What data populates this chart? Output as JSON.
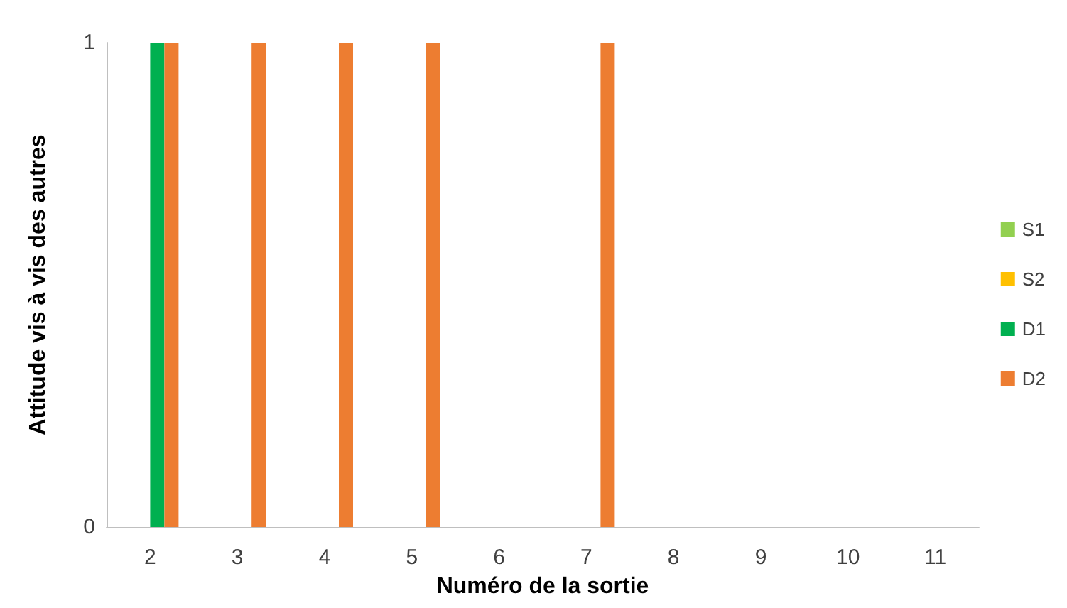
{
  "chart_data": {
    "type": "bar",
    "xlabel": "Numéro de la sortie",
    "ylabel": "Attitude vis à vis des autres",
    "categories": [
      "2",
      "3",
      "4",
      "5",
      "6",
      "7",
      "8",
      "9",
      "10",
      "11"
    ],
    "series": [
      {
        "name": "S1",
        "color": "#92d050",
        "values": [
          0,
          0,
          0,
          0,
          0,
          0,
          0,
          0,
          0,
          0
        ]
      },
      {
        "name": "S2",
        "color": "#ffc000",
        "values": [
          0,
          0,
          0,
          0,
          0,
          0,
          0,
          0,
          0,
          0
        ]
      },
      {
        "name": "D1",
        "color": "#00b050",
        "values": [
          1,
          0,
          0,
          0,
          0,
          0,
          0,
          0,
          0,
          0
        ]
      },
      {
        "name": "D2",
        "color": "#ed7d31",
        "values": [
          1,
          1,
          1,
          1,
          0,
          1,
          0,
          0,
          0,
          0
        ]
      }
    ],
    "ylim": [
      0,
      1
    ],
    "yticks": [
      0,
      1
    ],
    "legend": "right"
  }
}
